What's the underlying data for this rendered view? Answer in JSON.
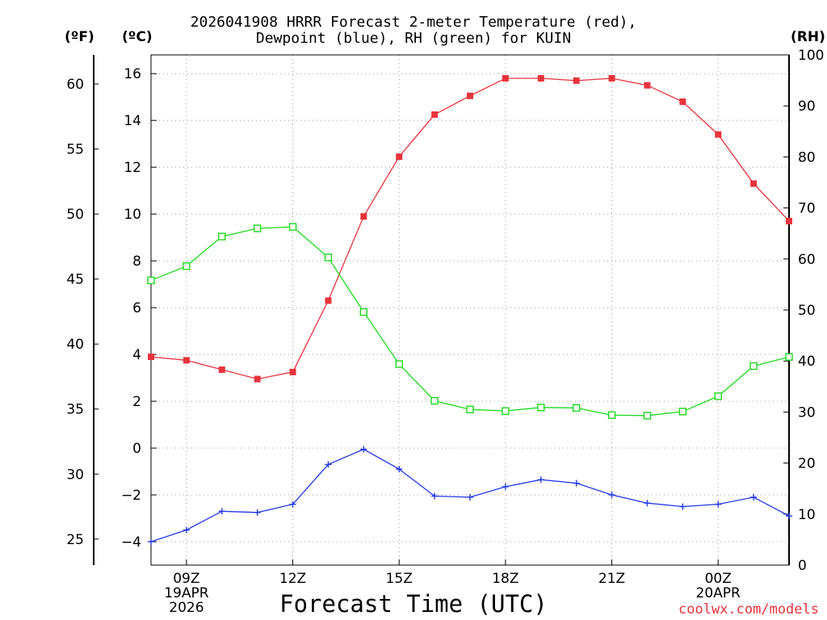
{
  "header": {
    "title_line1": "2026041908 HRRR Forecast 2-meter Temperature (red),",
    "title_line2": "Dewpoint (blue), RH (green) for KUIN"
  },
  "units": {
    "fahrenheit": "(ºF)",
    "celsius": "(ºC)",
    "rh": "(RH)"
  },
  "footer": {
    "xlabel": "Forecast Time (UTC)",
    "credit": "coolwx.com/models"
  },
  "colors": {
    "temperature": "#e8333c",
    "dewpoint": "#2438e8",
    "rh": "#1ed81e",
    "grid": "#999999"
  },
  "chart_data": {
    "type": "line",
    "title": "2026041908 HRRR Forecast 2-meter Temperature (red), Dewpoint (blue), RH (green) for KUIN",
    "xlabel": "Forecast Time (UTC)",
    "x_hours": [
      8,
      9,
      10,
      11,
      12,
      13,
      14,
      15,
      16,
      17,
      18,
      19,
      20,
      21,
      22,
      23,
      0,
      1,
      2
    ],
    "x_range": [
      8,
      26
    ],
    "x_ticks": [
      {
        "hour": 9,
        "lines": [
          "09Z",
          "19APR",
          "2026"
        ]
      },
      {
        "hour": 12,
        "lines": [
          "12Z"
        ]
      },
      {
        "hour": 15,
        "lines": [
          "15Z"
        ]
      },
      {
        "hour": 18,
        "lines": [
          "18Z"
        ]
      },
      {
        "hour": 21,
        "lines": [
          "21Z"
        ]
      },
      {
        "hour": 24,
        "lines": [
          "00Z",
          "20APR"
        ]
      }
    ],
    "y_celsius": {
      "range": [
        -5.0,
        16.8
      ],
      "ticks": [
        -4,
        -2,
        0,
        2,
        4,
        6,
        8,
        10,
        12,
        14,
        16
      ]
    },
    "y_fahrenheit": {
      "ticks": [
        25,
        30,
        35,
        40,
        45,
        50,
        55,
        60
      ]
    },
    "y_rh": {
      "range": [
        0,
        100
      ],
      "ticks": [
        0,
        10,
        20,
        30,
        40,
        50,
        60,
        70,
        80,
        90,
        100
      ]
    },
    "series": [
      {
        "name": "Temperature",
        "units": "C",
        "axis": "celsius",
        "marker": "filled-square",
        "values": [
          3.9,
          3.75,
          3.35,
          2.95,
          3.25,
          6.3,
          9.9,
          12.45,
          14.25,
          15.05,
          15.8,
          15.8,
          15.7,
          15.8,
          15.5,
          14.8,
          13.4,
          11.3,
          9.7
        ]
      },
      {
        "name": "Dewpoint",
        "units": "C",
        "axis": "celsius",
        "marker": "plus",
        "values": [
          -4.0,
          -3.5,
          -2.7,
          -2.75,
          -2.4,
          -0.7,
          -0.05,
          -0.9,
          -2.05,
          -2.1,
          -1.65,
          -1.35,
          -1.5,
          -2.0,
          -2.35,
          -2.5,
          -2.4,
          -2.1,
          -2.9
        ]
      },
      {
        "name": "RH",
        "units": "%",
        "axis": "rh",
        "marker": "open-square",
        "values": [
          55.8,
          58.6,
          64.4,
          66.0,
          66.3,
          60.3,
          49.6,
          39.4,
          32.2,
          30.5,
          30.2,
          30.9,
          30.8,
          29.4,
          29.3,
          30.1,
          33.1,
          39.0,
          40.8
        ]
      }
    ]
  }
}
